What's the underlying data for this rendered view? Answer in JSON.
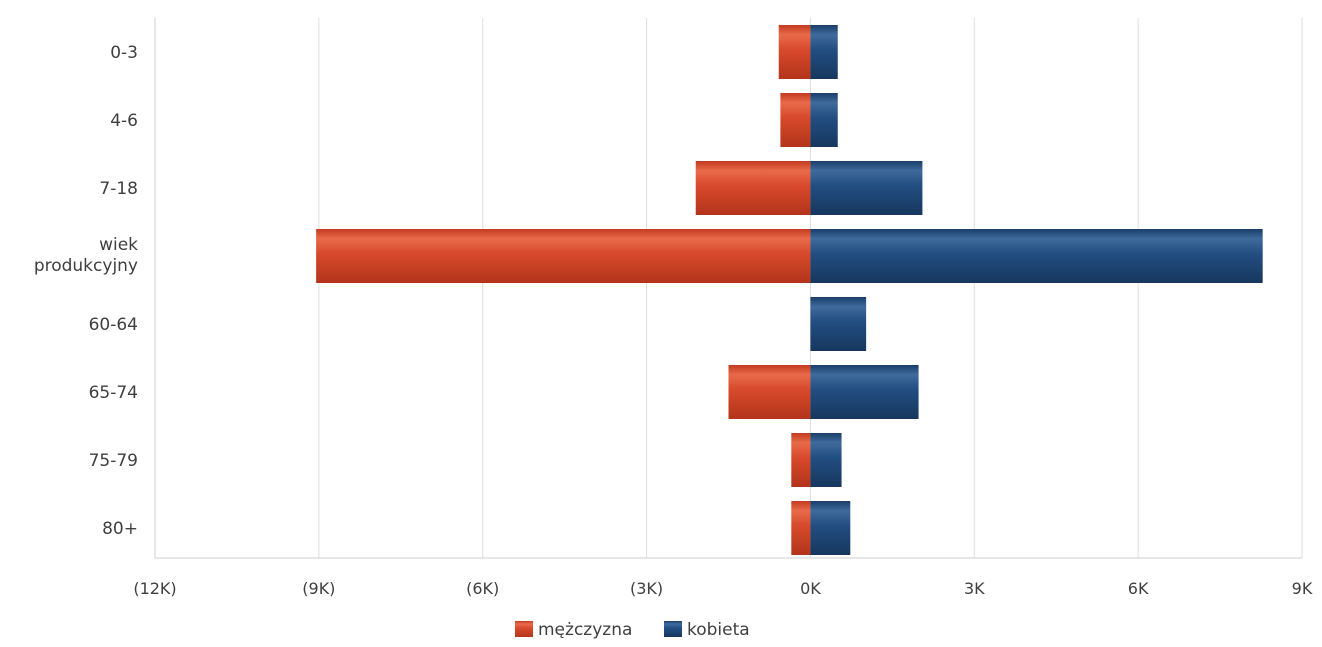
{
  "chart_data": {
    "type": "bar",
    "orientation": "horizontal",
    "stacking": "diverging",
    "categories": [
      "0-3",
      "4-6",
      "7-18",
      "wiek produkcyjny",
      "60-64",
      "65-74",
      "75-79",
      "80+"
    ],
    "category_label_lines": [
      [
        "0-3"
      ],
      [
        "4-6"
      ],
      [
        "7-18"
      ],
      [
        "wiek",
        "produkcyjny"
      ],
      [
        "60-64"
      ],
      [
        "65-74"
      ],
      [
        "75-79"
      ],
      [
        "80+"
      ]
    ],
    "series": [
      {
        "name": "mężczyzna",
        "color": "#d2472a",
        "values": [
          -580,
          -550,
          -2100,
          -9050,
          0,
          -1500,
          -350,
          -350
        ]
      },
      {
        "name": "kobieta",
        "color": "#1f4a7c",
        "values": [
          500,
          500,
          2050,
          8280,
          1020,
          1980,
          570,
          730
        ]
      }
    ],
    "xlim": [
      -12000,
      9000
    ],
    "xticks": [
      -12000,
      -9000,
      -6000,
      -3000,
      0,
      3000,
      6000,
      9000
    ],
    "xtick_labels": [
      "(12K)",
      "(9K)",
      "(6K)",
      "(3K)",
      "0K",
      "3K",
      "6K",
      "9K"
    ],
    "grid": true,
    "legend_position": "bottom-center",
    "xlabel": "",
    "ylabel": "",
    "title": ""
  }
}
